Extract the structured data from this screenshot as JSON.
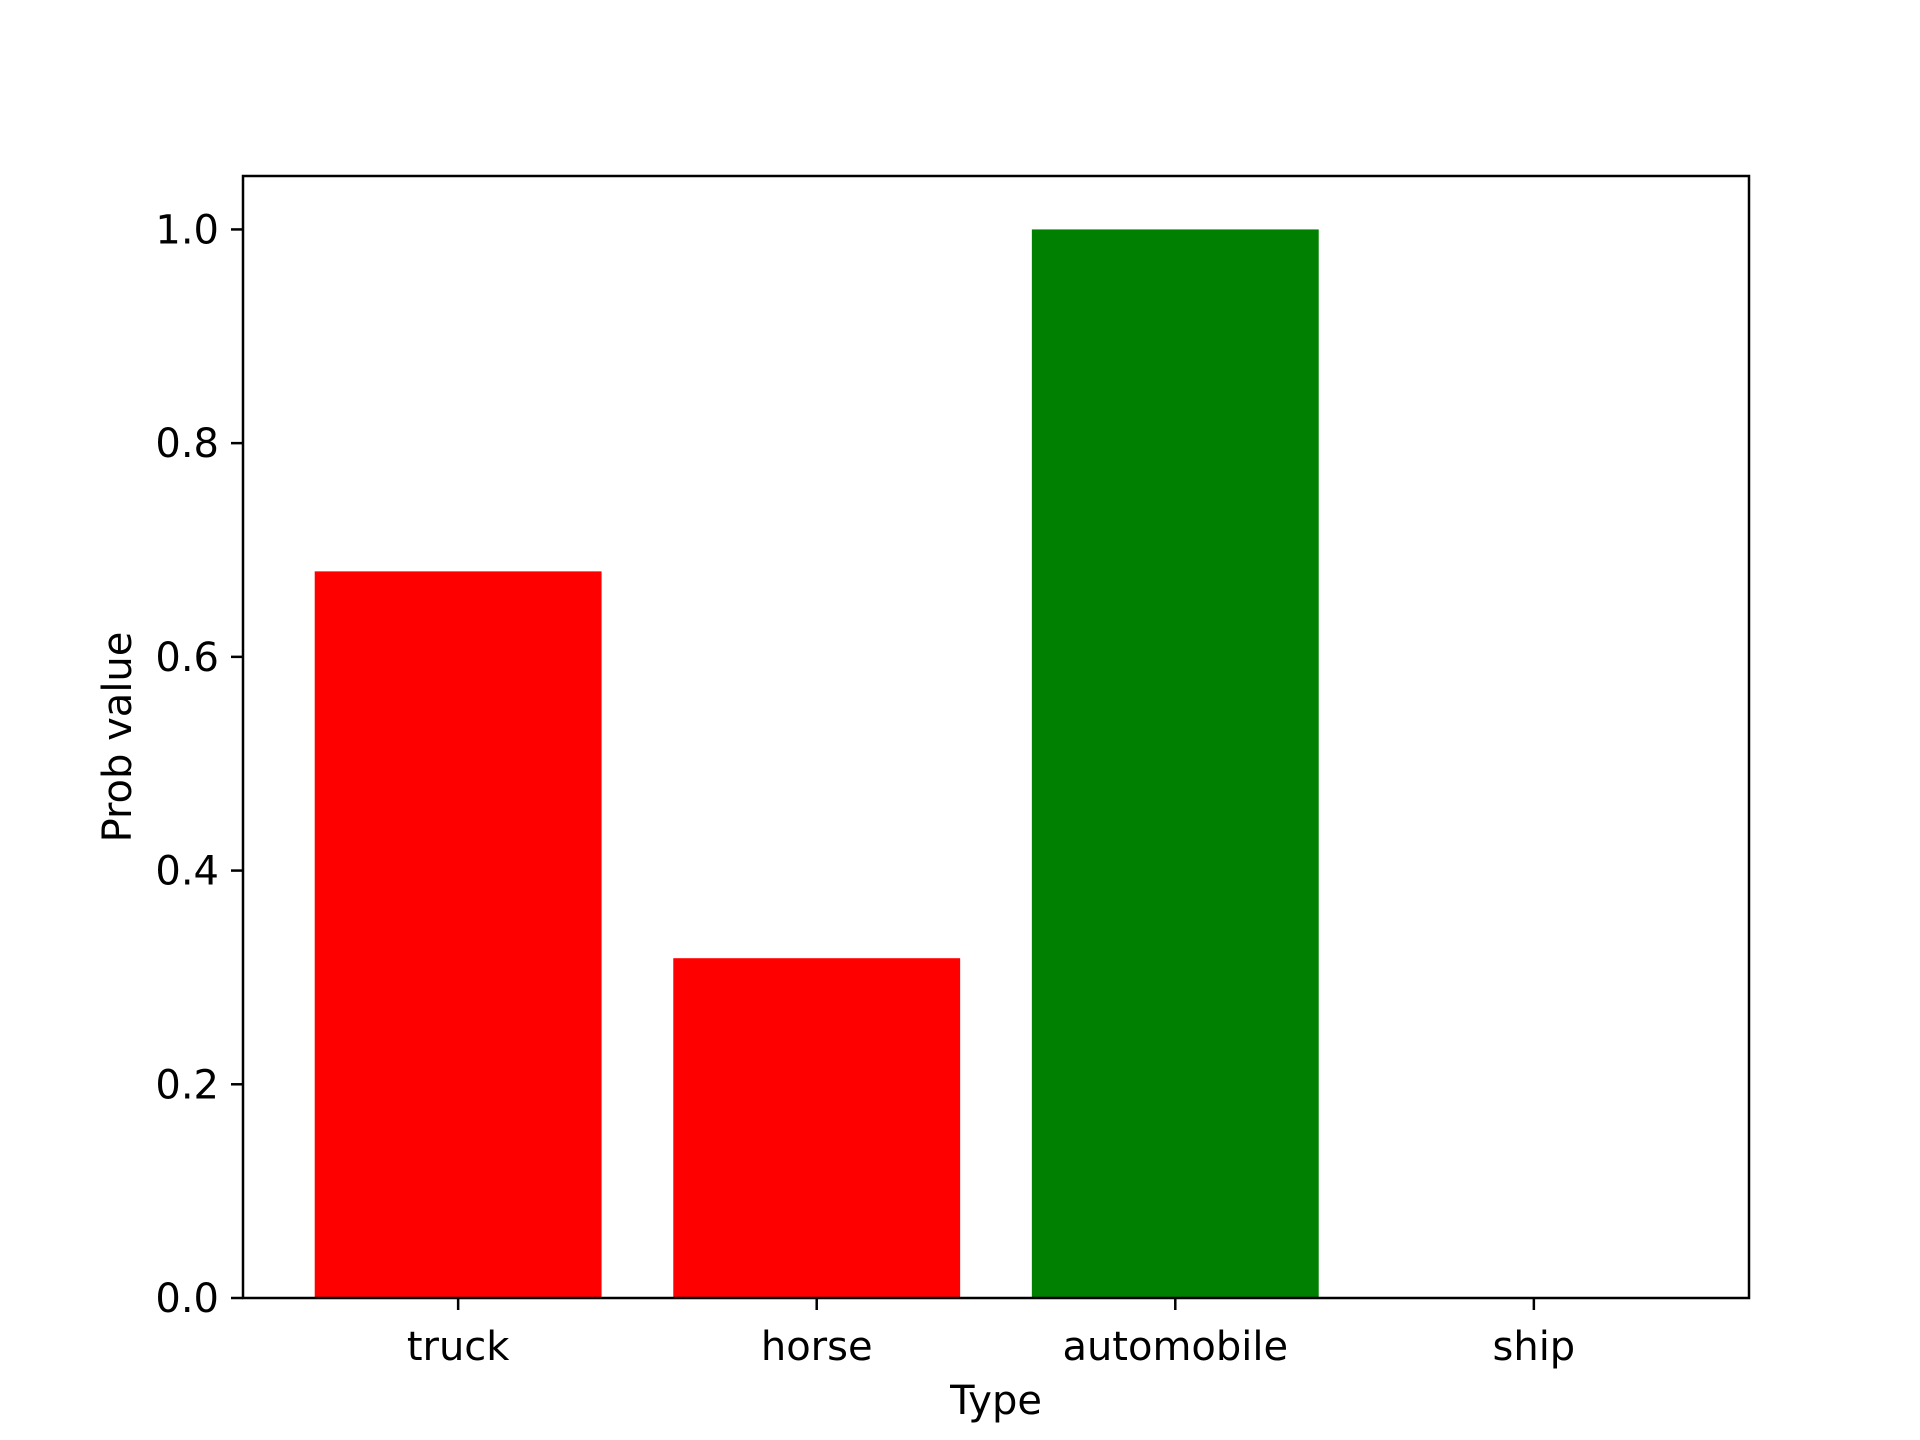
{
  "chart_data": {
    "type": "bar",
    "categories": [
      "truck",
      "horse",
      "automobile",
      "ship"
    ],
    "values": [
      0.68,
      0.318,
      1.0,
      0.0
    ],
    "bar_colors": [
      "#ff0000",
      "#ff0000",
      "#008000",
      "#008000"
    ],
    "title": "",
    "xlabel": "Type",
    "ylabel": "Prob value",
    "ylim": [
      0,
      1.05
    ],
    "yticks": [
      0.0,
      0.2,
      0.4,
      0.6,
      0.8,
      1.0
    ],
    "ytick_labels": [
      "0.0",
      "0.2",
      "0.4",
      "0.6",
      "0.8",
      "1.0"
    ],
    "grid": false,
    "legend": "none"
  }
}
